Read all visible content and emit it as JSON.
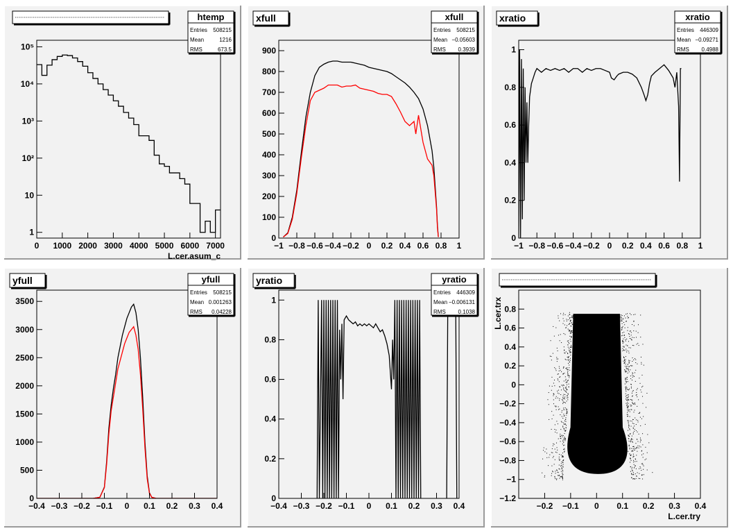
{
  "canvas": {
    "background": "#ffffff",
    "pad_background": "#f2f2f2"
  },
  "colors": {
    "black": "#000000",
    "red": "#ff0000"
  },
  "chart_data": [
    {
      "pad": "htemp",
      "type": "line",
      "title": "",
      "title_is_dotted_placeholder": true,
      "stats": {
        "name": "htemp",
        "entries": "508215",
        "mean": "1216",
        "rms": "673.5"
      },
      "xlabel": "L.cer.asum_c",
      "ylabel": "",
      "xlim": [
        0,
        7200
      ],
      "ylim": [
        0.7,
        150000
      ],
      "log_y": true,
      "x_ticks": [
        0,
        1000,
        2000,
        3000,
        4000,
        5000,
        6000,
        7000
      ],
      "y_ticks": [
        1,
        10,
        100,
        1000,
        10000,
        100000
      ],
      "y_tick_labels": [
        "1",
        "10",
        "10²",
        "10³",
        "10⁴",
        "10⁵"
      ],
      "series": [
        {
          "color": "#000000",
          "step": true,
          "bin_width": 200,
          "x": [
            0,
            200,
            400,
            600,
            800,
            1000,
            1200,
            1400,
            1600,
            1800,
            2000,
            2200,
            2400,
            2600,
            2800,
            3000,
            3200,
            3400,
            3600,
            3800,
            4000,
            4200,
            4400,
            4600,
            4800,
            5000,
            5200,
            5400,
            5600,
            5800,
            6000,
            6200,
            6400,
            6600,
            6800,
            7000
          ],
          "values": [
            33000,
            17000,
            32000,
            45000,
            55000,
            60000,
            58000,
            50000,
            40000,
            30000,
            20000,
            14000,
            10000,
            7000,
            5000,
            3500,
            2500,
            1700,
            1200,
            800,
            400,
            400,
            300,
            120,
            70,
            60,
            40,
            40,
            28,
            20,
            6,
            6,
            1,
            2,
            1,
            4
          ]
        }
      ]
    },
    {
      "pad": "xfull",
      "type": "line",
      "title": "xfull",
      "stats": {
        "name": "xfull",
        "entries": "508215",
        "mean": "−0.05603",
        "rms": "0.3939"
      },
      "xlabel": "",
      "ylabel": "",
      "xlim": [
        -1,
        1
      ],
      "ylim": [
        0,
        950
      ],
      "x_ticks": [
        -1,
        -0.8,
        -0.6,
        -0.4,
        -0.2,
        0,
        0.2,
        0.4,
        0.6,
        0.8,
        1
      ],
      "y_ticks": [
        0,
        100,
        200,
        300,
        400,
        500,
        600,
        700,
        800,
        900
      ],
      "series": [
        {
          "color": "#000000",
          "x": [
            -0.95,
            -0.9,
            -0.85,
            -0.8,
            -0.75,
            -0.7,
            -0.65,
            -0.6,
            -0.55,
            -0.5,
            -0.45,
            -0.4,
            -0.35,
            -0.3,
            -0.25,
            -0.2,
            -0.15,
            -0.1,
            -0.05,
            0,
            0.05,
            0.1,
            0.15,
            0.2,
            0.25,
            0.3,
            0.35,
            0.4,
            0.45,
            0.5,
            0.55,
            0.6,
            0.65,
            0.7,
            0.72,
            0.75,
            0.76,
            0.77
          ],
          "values": [
            5,
            25,
            100,
            230,
            410,
            580,
            700,
            780,
            820,
            835,
            845,
            850,
            850,
            845,
            845,
            845,
            840,
            835,
            830,
            820,
            815,
            810,
            805,
            800,
            790,
            775,
            760,
            745,
            725,
            700,
            670,
            620,
            540,
            420,
            340,
            150,
            60,
            5
          ]
        },
        {
          "color": "#ff0000",
          "x": [
            -0.95,
            -0.9,
            -0.85,
            -0.8,
            -0.75,
            -0.7,
            -0.65,
            -0.6,
            -0.55,
            -0.5,
            -0.45,
            -0.4,
            -0.35,
            -0.3,
            -0.25,
            -0.2,
            -0.15,
            -0.1,
            -0.05,
            0,
            0.05,
            0.1,
            0.15,
            0.2,
            0.25,
            0.3,
            0.35,
            0.4,
            0.45,
            0.5,
            0.52,
            0.55,
            0.6,
            0.65,
            0.7,
            0.72,
            0.75,
            0.76,
            0.77
          ],
          "values": [
            5,
            22,
            90,
            215,
            385,
            540,
            660,
            700,
            710,
            720,
            735,
            735,
            735,
            725,
            730,
            730,
            735,
            720,
            715,
            710,
            705,
            695,
            690,
            690,
            680,
            645,
            605,
            560,
            540,
            560,
            500,
            590,
            460,
            380,
            350,
            300,
            140,
            50,
            5
          ]
        }
      ]
    },
    {
      "pad": "xratio",
      "type": "line",
      "title": "xratio",
      "stats": {
        "name": "xratio",
        "entries": "446309",
        "mean": "−0.09271",
        "rms": "0.4988"
      },
      "xlabel": "",
      "ylabel": "",
      "xlim": [
        -1,
        1
      ],
      "ylim": [
        0,
        1.05
      ],
      "x_ticks": [
        -1,
        -0.8,
        -0.6,
        -0.4,
        -0.2,
        0,
        0.2,
        0.4,
        0.6,
        0.8,
        1
      ],
      "y_ticks": [
        0,
        0.2,
        0.4,
        0.6,
        0.8,
        1
      ],
      "series": [
        {
          "color": "#000000",
          "x": [
            -1,
            -0.99,
            -0.98,
            -0.97,
            -0.96,
            -0.95,
            -0.94,
            -0.93,
            -0.92,
            -0.91,
            -0.9,
            -0.89,
            -0.88,
            -0.86,
            -0.84,
            -0.82,
            -0.8,
            -0.75,
            -0.7,
            -0.65,
            -0.6,
            -0.55,
            -0.5,
            -0.45,
            -0.4,
            -0.35,
            -0.3,
            -0.25,
            -0.2,
            -0.15,
            -0.1,
            -0.05,
            0,
            0.02,
            0.05,
            0.08,
            0.1,
            0.15,
            0.2,
            0.25,
            0.3,
            0.35,
            0.38,
            0.4,
            0.42,
            0.44,
            0.46,
            0.5,
            0.55,
            0.6,
            0.65,
            0.7,
            0.72,
            0.74,
            0.76,
            0.77,
            0.78,
            0.79
          ],
          "values": [
            0,
            1,
            0,
            0.95,
            0.1,
            0.9,
            0.2,
            0.8,
            0.4,
            0.72,
            0.4,
            0.6,
            0.75,
            0.82,
            0.85,
            0.88,
            0.9,
            0.88,
            0.9,
            0.89,
            0.9,
            0.89,
            0.9,
            0.88,
            0.9,
            0.9,
            0.88,
            0.9,
            0.89,
            0.9,
            0.9,
            0.89,
            0.88,
            0.85,
            0.84,
            0.86,
            0.87,
            0.88,
            0.88,
            0.87,
            0.85,
            0.8,
            0.76,
            0.73,
            0.76,
            0.82,
            0.86,
            0.88,
            0.9,
            0.92,
            0.89,
            0.85,
            0.8,
            0.88,
            0.7,
            0.3,
            0.9,
            0.9
          ]
        }
      ]
    },
    {
      "pad": "yfull",
      "type": "line",
      "title": "yfull",
      "stats": {
        "name": "yfull",
        "entries": "508215",
        "mean": "0.001263",
        "rms": "0.04228"
      },
      "xlabel": "",
      "ylabel": "",
      "xlim": [
        -0.4,
        0.4
      ],
      "ylim": [
        0,
        3700
      ],
      "x_ticks": [
        -0.4,
        -0.3,
        -0.2,
        -0.1,
        0,
        0.1,
        0.2,
        0.3,
        0.4
      ],
      "y_ticks": [
        0,
        500,
        1000,
        1500,
        2000,
        2500,
        3000,
        3500
      ],
      "series": [
        {
          "color": "#000000",
          "x": [
            -0.4,
            -0.15,
            -0.12,
            -0.1,
            -0.09,
            -0.08,
            -0.07,
            -0.06,
            -0.05,
            -0.04,
            -0.03,
            -0.02,
            -0.01,
            0,
            0.01,
            0.02,
            0.03,
            0.04,
            0.05,
            0.06,
            0.07,
            0.08,
            0.09,
            0.1,
            0.11,
            0.13,
            0.4
          ],
          "values": [
            0,
            0,
            20,
            200,
            650,
            1250,
            1650,
            1950,
            2200,
            2500,
            2700,
            2900,
            3050,
            3200,
            3300,
            3400,
            3450,
            3300,
            3000,
            2500,
            1800,
            1000,
            400,
            100,
            20,
            0,
            0
          ]
        },
        {
          "color": "#ff0000",
          "x": [
            -0.4,
            -0.15,
            -0.12,
            -0.1,
            -0.09,
            -0.08,
            -0.07,
            -0.06,
            -0.05,
            -0.04,
            -0.03,
            -0.02,
            -0.01,
            0,
            0.01,
            0.02,
            0.03,
            0.04,
            0.05,
            0.06,
            0.07,
            0.08,
            0.09,
            0.1,
            0.11,
            0.13,
            0.4
          ],
          "values": [
            0,
            0,
            20,
            190,
            600,
            1150,
            1550,
            1800,
            2050,
            2300,
            2450,
            2600,
            2750,
            2850,
            2950,
            3000,
            3050,
            2900,
            2650,
            2200,
            1600,
            900,
            350,
            90,
            20,
            0,
            0
          ]
        }
      ]
    },
    {
      "pad": "yratio",
      "type": "line",
      "title": "yratio",
      "stats": {
        "name": "yratio",
        "entries": "446309",
        "mean": "−0.006131",
        "rms": "0.1038"
      },
      "xlabel": "",
      "ylabel": "",
      "xlim": [
        -0.4,
        0.4
      ],
      "ylim": [
        0,
        1.05
      ],
      "x_ticks": [
        -0.4,
        -0.3,
        -0.2,
        -0.1,
        0,
        0.1,
        0.2,
        0.3,
        0.4
      ],
      "y_ticks": [
        0,
        0.2,
        0.4,
        0.6,
        0.8,
        1
      ],
      "series": [
        {
          "color": "#000000",
          "x": [
            -0.23,
            -0.225,
            -0.22,
            -0.21,
            -0.205,
            -0.2,
            -0.195,
            -0.19,
            -0.185,
            -0.18,
            -0.175,
            -0.17,
            -0.165,
            -0.16,
            -0.155,
            -0.15,
            -0.145,
            -0.14,
            -0.135,
            -0.13,
            -0.125,
            -0.12,
            -0.115,
            -0.11,
            -0.1,
            -0.09,
            -0.08,
            -0.07,
            -0.06,
            -0.05,
            -0.04,
            -0.03,
            -0.02,
            -0.01,
            0,
            0.01,
            0.02,
            0.03,
            0.04,
            0.05,
            0.06,
            0.07,
            0.08,
            0.09,
            0.1,
            0.105,
            0.11,
            0.115,
            0.12,
            0.125,
            0.13,
            0.135,
            0.14,
            0.145,
            0.15,
            0.155,
            0.16,
            0.165,
            0.17,
            0.175,
            0.18,
            0.185,
            0.19,
            0.195,
            0.2,
            0.205,
            0.21,
            0.215,
            0.22,
            0.225,
            0.23
          ],
          "values": [
            0,
            1,
            0,
            1,
            0,
            1,
            0,
            1,
            0,
            1,
            0,
            1,
            0,
            1,
            0,
            1,
            0,
            1,
            0,
            0.85,
            0.6,
            0.88,
            0.5,
            0.9,
            0.92,
            0.9,
            0.89,
            0.88,
            0.89,
            0.87,
            0.88,
            0.87,
            0.88,
            0.87,
            0.88,
            0.87,
            0.86,
            0.88,
            0.86,
            0.84,
            0.85,
            0.82,
            0.78,
            0.72,
            0.55,
            0.8,
            0.6,
            1,
            0,
            1,
            0,
            1,
            0,
            1,
            0,
            1,
            0,
            1,
            0,
            1,
            0,
            1,
            0,
            1,
            0,
            1,
            0,
            1,
            0,
            1,
            0
          ]
        },
        {
          "color": "#000000",
          "x": [
            0.345,
            0.35,
            0.355,
            0.38,
            0.385,
            0.39
          ],
          "values": [
            0,
            1,
            1,
            1,
            1,
            0
          ]
        }
      ]
    },
    {
      "pad": "trx_vs_try",
      "type": "scatter",
      "title": "",
      "title_is_dotted_placeholder": true,
      "xlabel": "L.cer.try",
      "ylabel": "L.cer.trx",
      "xlim": [
        -0.3,
        0.4
      ],
      "ylim": [
        -1.2,
        1
      ],
      "x_ticks": [
        -0.2,
        -0.1,
        0,
        0.1,
        0.2,
        0.3,
        0.4
      ],
      "y_ticks": [
        -1.2,
        -1,
        -0.8,
        -0.6,
        -0.4,
        -0.2,
        0,
        0.2,
        0.4,
        0.6,
        0.8
      ],
      "x_tick_labels": [
        "−0.2",
        "−0.1",
        "0",
        "0.1",
        "0.2",
        "0.3",
        "0.4"
      ],
      "y_tick_labels": [
        "−1.2",
        "−1",
        "−0.8",
        "−0.6",
        "−0.4",
        "−0.2",
        "0",
        "0.2",
        "0.4",
        "0.6",
        "0.8"
      ],
      "dense_region": {
        "trx_top": 0.75,
        "trx_bottom": -0.92,
        "top_try_range": [
          -0.09,
          0.09
        ],
        "bottom_try_range": [
          -0.12,
          0.13
        ]
      },
      "series": [
        {
          "color": "#000000",
          "x": [
            0.0,
            -0.05,
            0.05,
            -0.08,
            0.08,
            0.0,
            -0.11,
            0.12
          ],
          "values": [
            0.7,
            0.4,
            0.4,
            0.0,
            0.0,
            -0.5,
            -0.7,
            -0.7
          ]
        }
      ]
    }
  ]
}
